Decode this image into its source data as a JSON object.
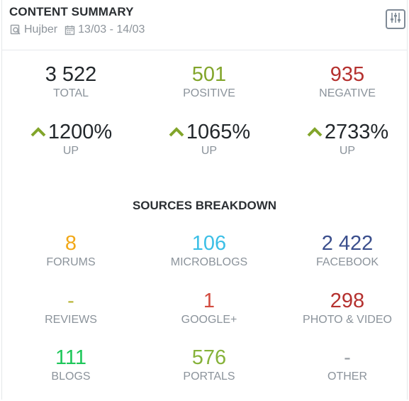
{
  "header": {
    "title": "CONTENT SUMMARY",
    "source": "Hujber",
    "date_range": "13/03 - 14/03",
    "settings_icon": "sliders-icon"
  },
  "totals": [
    {
      "value": "3 522",
      "label": "TOTAL",
      "color": "#22272b"
    },
    {
      "value": "501",
      "label": "POSITIVE",
      "color": "#82a52b"
    },
    {
      "value": "935",
      "label": "NEGATIVE",
      "color": "#b5312f"
    }
  ],
  "changes": [
    {
      "value": "1200%",
      "label": "UP",
      "arrow_color": "#82a52b"
    },
    {
      "value": "1065%",
      "label": "UP",
      "arrow_color": "#82a52b"
    },
    {
      "value": "2733%",
      "label": "UP",
      "arrow_color": "#82a52b"
    }
  ],
  "sources_title": "SOURCES BREAKDOWN",
  "sources": [
    {
      "value": "8",
      "label": "FORUMS",
      "color": "#f2a818"
    },
    {
      "value": "106",
      "label": "MICROBLOGS",
      "color": "#3cbfe6"
    },
    {
      "value": "2 422",
      "label": "FACEBOOK",
      "color": "#3b4f8d"
    },
    {
      "value": "-",
      "label": "REVIEWS",
      "color": "#b9b63a"
    },
    {
      "value": "1",
      "label": "GOOGLE+",
      "color": "#d24b3f"
    },
    {
      "value": "298",
      "label": "PHOTO & VIDEO",
      "color": "#b5312f"
    },
    {
      "value": "111",
      "label": "BLOGS",
      "color": "#1ec75a"
    },
    {
      "value": "576",
      "label": "PORTALS",
      "color": "#86b23a"
    },
    {
      "value": "-",
      "label": "OTHER",
      "color": "#9aa0a6"
    }
  ]
}
